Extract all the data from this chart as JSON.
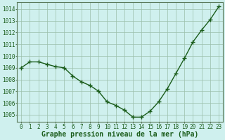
{
  "x": [
    0,
    1,
    2,
    3,
    4,
    5,
    6,
    7,
    8,
    9,
    10,
    11,
    12,
    13,
    14,
    15,
    16,
    17,
    18,
    19,
    20,
    21,
    22,
    23
  ],
  "y": [
    1009.0,
    1009.5,
    1009.5,
    1009.3,
    1009.1,
    1009.0,
    1008.3,
    1007.8,
    1007.5,
    1007.0,
    1006.1,
    1005.8,
    1005.4,
    1004.8,
    1004.8,
    1005.3,
    1006.1,
    1007.2,
    1008.5,
    1009.8,
    1011.2,
    1012.2,
    1013.1,
    1014.2
  ],
  "line_color": "#1a5c1a",
  "marker": "+",
  "marker_size": 4,
  "line_width": 1.0,
  "bg_color": "#cff0ee",
  "grid_color": "#9bbfaa",
  "xlabel": "Graphe pression niveau de la mer (hPa)",
  "xlabel_fontsize": 7,
  "xlabel_color": "#1a5c1a",
  "ytick_labels": [
    "1005",
    "1006",
    "1007",
    "1008",
    "1009",
    "1010",
    "1011",
    "1012",
    "1013",
    "1014"
  ],
  "ylim": [
    1004.4,
    1014.6
  ],
  "yticks": [
    1005,
    1006,
    1007,
    1008,
    1009,
    1010,
    1011,
    1012,
    1013,
    1014
  ],
  "xtick_labels": [
    "0",
    "1",
    "2",
    "3",
    "4",
    "5",
    "6",
    "7",
    "8",
    "9",
    "10",
    "11",
    "12",
    "13",
    "14",
    "15",
    "16",
    "17",
    "18",
    "19",
    "20",
    "21",
    "22",
    "23"
  ],
  "tick_fontsize": 5.5,
  "spine_color": "#5a7a5a",
  "xlim": [
    -0.5,
    23.5
  ]
}
